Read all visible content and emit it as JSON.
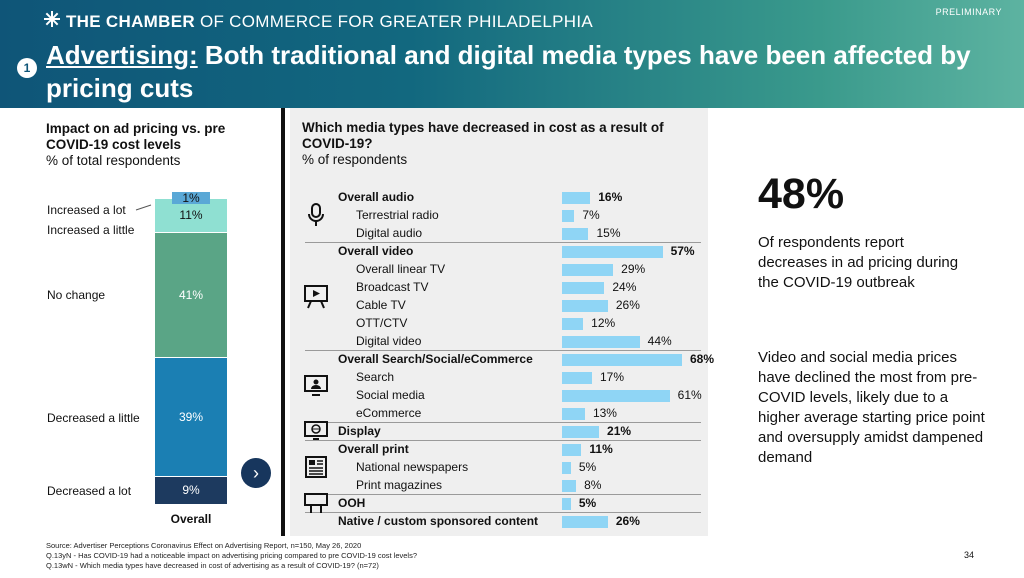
{
  "header": {
    "logo_bold": "THE CHAMBER",
    "logo_rest": " OF COMMERCE FOR GREATER PHILADELPHIA",
    "preliminary": "PRELIMINARY",
    "section_number": "1",
    "title_lead": "Advertising:",
    "title_rest": " Both traditional and digital media types have been affected by pricing cuts",
    "bg_colors": [
      "#0f5578",
      "#5db3a1"
    ]
  },
  "left_chart": {
    "title": "Impact on ad pricing vs. pre COVID-19 cost levels",
    "subtitle": "% of total respondents",
    "next_button_icon": "chevron-right-icon"
  },
  "middle_chart": {
    "title": "Which media types have decreased in cost as a result of COVID-19?",
    "subtitle": "% of respondents",
    "bar_color": "#8fd5f5"
  },
  "right_panel": {
    "big_stat": "48%",
    "stat_desc": "Of respondents report decreases in ad pricing during the COVID-19 outbreak",
    "insight": "Video and social media prices have declined the most from pre-COVID levels, likely due to a higher average starting price point and oversupply amidst dampened demand"
  },
  "footer": {
    "source": "Source: Advertiser Perceptions Coronavirus Effect on Advertising Report, n=150, May 26, 2020",
    "q1": "Q.13yN - Has COVID-19 had a noticeable impact on advertising pricing compared to pre COVID-19 cost levels?",
    "q2": "Q.13wN - Which media types have decreased in cost of advertising as a result of COVID-19? (n=72)",
    "page": "34"
  },
  "chart_data": [
    {
      "type": "bar",
      "stacked": true,
      "title": "Impact on ad pricing vs. pre COVID-19 cost levels",
      "subtitle": "% of total respondents",
      "categories": [
        "Overall"
      ],
      "series": [
        {
          "name": "Decreased a lot",
          "values": [
            9
          ],
          "label": "9%",
          "color": "#1d3a5f"
        },
        {
          "name": "Decreased a little",
          "values": [
            39
          ],
          "label": "39%",
          "color": "#1b7fb3"
        },
        {
          "name": "No change",
          "values": [
            41
          ],
          "label": "41%",
          "color": "#5aa586"
        },
        {
          "name": "Increased a little",
          "values": [
            11
          ],
          "label": "11%",
          "color": "#8fe0d2"
        },
        {
          "name": "Increased a lot",
          "values": [
            1
          ],
          "label": "1%",
          "color": "#5aa8d6"
        }
      ]
    },
    {
      "type": "bar",
      "orientation": "horizontal",
      "title": "Which media types have decreased in cost as a result of COVID-19?",
      "subtitle": "% of respondents",
      "groups": [
        {
          "icon": "microphone-icon",
          "rows": [
            {
              "label": "Overall audio",
              "value": 16,
              "display": "16%",
              "top": true
            },
            {
              "label": "Terrestrial radio",
              "value": 7,
              "display": "7%",
              "top": false
            },
            {
              "label": "Digital audio",
              "value": 15,
              "display": "15%",
              "top": false
            }
          ]
        },
        {
          "icon": "video-screen-icon",
          "rows": [
            {
              "label": "Overall video",
              "value": 57,
              "display": "57%",
              "top": true
            },
            {
              "label": "Overall linear TV",
              "value": 29,
              "display": "29%",
              "top": false
            },
            {
              "label": "Broadcast TV",
              "value": 24,
              "display": "24%",
              "top": false
            },
            {
              "label": "Cable TV",
              "value": 26,
              "display": "26%",
              "top": false
            },
            {
              "label": "OTT/CTV",
              "value": 12,
              "display": "12%",
              "top": false
            },
            {
              "label": "Digital video",
              "value": 44,
              "display": "44%",
              "top": false
            }
          ]
        },
        {
          "icon": "social-monitor-icon",
          "rows": [
            {
              "label": "Overall Search/Social/eCommerce",
              "value": 68,
              "display": "68%",
              "top": true
            },
            {
              "label": "Search",
              "value": 17,
              "display": "17%",
              "top": false
            },
            {
              "label": "Social media",
              "value": 61,
              "display": "61%",
              "top": false
            },
            {
              "label": "eCommerce",
              "value": 13,
              "display": "13%",
              "top": false
            }
          ]
        },
        {
          "icon": "web-display-icon",
          "rows": [
            {
              "label": "Display",
              "value": 21,
              "display": "21%",
              "top": true
            }
          ]
        },
        {
          "icon": "newspaper-icon",
          "rows": [
            {
              "label": "Overall print",
              "value": 11,
              "display": "11%",
              "top": true
            },
            {
              "label": "National newspapers",
              "value": 5,
              "display": "5%",
              "top": false
            },
            {
              "label": "Print magazines",
              "value": 8,
              "display": "8%",
              "top": false
            }
          ]
        },
        {
          "icon": "billboard-icon",
          "rows": [
            {
              "label": "OOH",
              "value": 5,
              "display": "5%",
              "top": true
            }
          ]
        },
        {
          "icon": "",
          "rows": [
            {
              "label": "Native / custom sponsored content",
              "value": 26,
              "display": "26%",
              "top": true
            }
          ]
        }
      ]
    }
  ]
}
